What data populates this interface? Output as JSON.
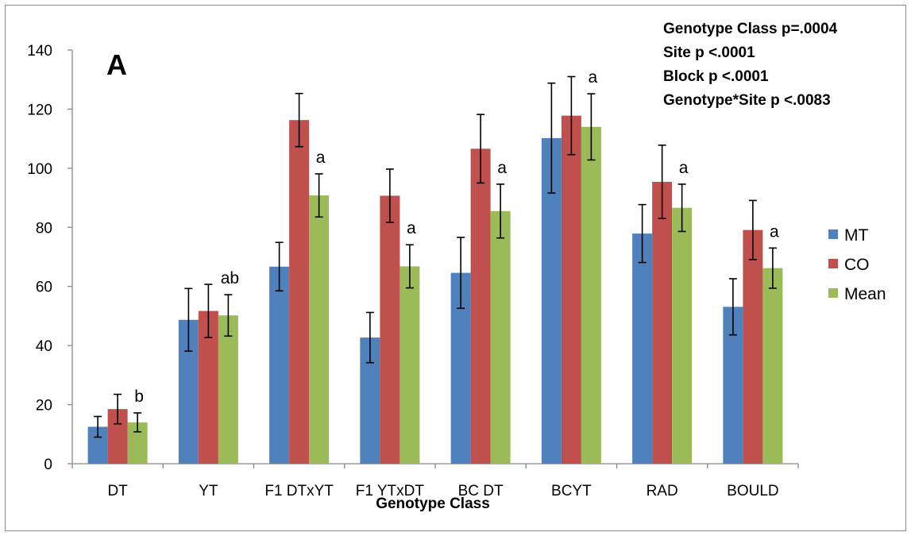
{
  "chart_data": {
    "type": "bar",
    "panel_label": "A",
    "xlabel": "Genotype Class",
    "ylabel": "",
    "ylim": [
      0,
      140
    ],
    "yticks": [
      0,
      20,
      40,
      60,
      80,
      100,
      120,
      140
    ],
    "categories": [
      "DT",
      "YT",
      "F1 DTxYT",
      "F1 YTxDT",
      "BC DT",
      "BCYT",
      "RAD",
      "BOULD"
    ],
    "series": [
      {
        "name": "MT",
        "color": "#4F81BD",
        "values": [
          12.5,
          48.7,
          66.7,
          42.7,
          64.6,
          110.2,
          77.9,
          53.1
        ],
        "errors": [
          3.5,
          10.6,
          8.2,
          8.5,
          12.0,
          18.6,
          9.8,
          9.5
        ]
      },
      {
        "name": "CO",
        "color": "#C0504D",
        "values": [
          18.5,
          51.7,
          116.3,
          90.7,
          106.6,
          117.8,
          95.4,
          79.1
        ],
        "errors": [
          5.0,
          9.0,
          9.0,
          9.0,
          11.6,
          13.2,
          12.4,
          10.0
        ]
      },
      {
        "name": "Mean",
        "color": "#9BBB59",
        "values": [
          14.0,
          50.2,
          90.8,
          66.8,
          85.5,
          114.0,
          86.6,
          66.2
        ],
        "errors": [
          3.2,
          7.0,
          7.3,
          7.3,
          9.1,
          11.2,
          8.0,
          6.8
        ]
      }
    ],
    "significance_letters": [
      "b",
      "ab",
      "a",
      "a",
      "a",
      "a",
      "a",
      "a"
    ],
    "stats_annotations": [
      "Genotype Class p=.0004",
      "Site p <.0001",
      "Block p <.0001",
      "Genotype*Site p <.0083"
    ],
    "legend_position": "right",
    "grid": false
  }
}
